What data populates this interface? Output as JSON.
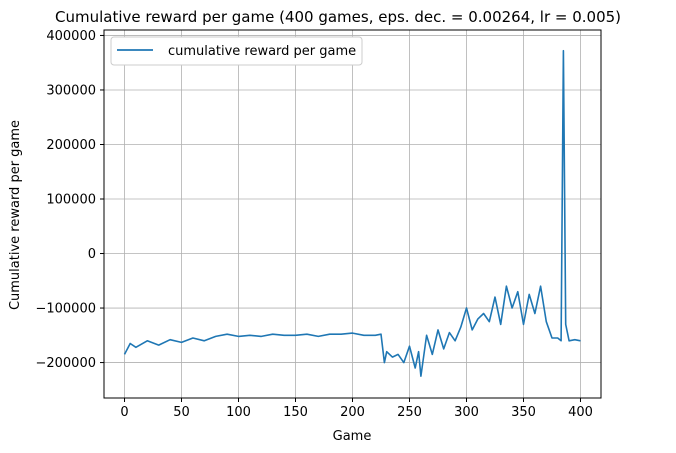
{
  "chart_data": {
    "type": "line",
    "title": "Cumulative reward per game (400 games, eps. dec. = 0.00264, lr = 0.005)",
    "xlabel": "Game",
    "ylabel": "Cumulative reward per game",
    "xlim": [
      -18,
      418
    ],
    "ylim": [
      -265000,
      410000
    ],
    "xticks": [
      0,
      50,
      100,
      150,
      200,
      250,
      300,
      350,
      400
    ],
    "xtick_labels": [
      "0",
      "50",
      "100",
      "150",
      "200",
      "250",
      "300",
      "350",
      "400"
    ],
    "yticks": [
      -200000,
      -100000,
      0,
      100000,
      200000,
      300000,
      400000
    ],
    "ytick_labels": [
      "−200000",
      "−100000",
      "0",
      "100000",
      "200000",
      "300000",
      "400000"
    ],
    "grid": true,
    "legend_position": "top-left",
    "color": "#1f77b4",
    "series": [
      {
        "name": "cumulative reward per game",
        "x": [
          0,
          5,
          10,
          20,
          30,
          40,
          50,
          60,
          70,
          80,
          90,
          100,
          110,
          120,
          130,
          140,
          150,
          160,
          170,
          180,
          190,
          200,
          210,
          220,
          225,
          228,
          230,
          235,
          240,
          245,
          250,
          255,
          258,
          260,
          265,
          270,
          275,
          280,
          285,
          290,
          295,
          300,
          305,
          310,
          315,
          320,
          325,
          330,
          335,
          340,
          345,
          350,
          355,
          360,
          365,
          370,
          375,
          380,
          383,
          385,
          387,
          390,
          395,
          400
        ],
        "y": [
          -185000,
          -165000,
          -172000,
          -160000,
          -168000,
          -158000,
          -163000,
          -155000,
          -160000,
          -152000,
          -148000,
          -152000,
          -150000,
          -152000,
          -148000,
          -150000,
          -150000,
          -148000,
          -152000,
          -148000,
          -148000,
          -146000,
          -150000,
          -150000,
          -148000,
          -200000,
          -180000,
          -190000,
          -185000,
          -200000,
          -170000,
          -210000,
          -180000,
          -225000,
          -150000,
          -185000,
          -140000,
          -175000,
          -145000,
          -160000,
          -135000,
          -100000,
          -140000,
          -120000,
          -110000,
          -125000,
          -80000,
          -130000,
          -60000,
          -100000,
          -70000,
          -130000,
          -75000,
          -110000,
          -60000,
          -125000,
          -155000,
          -155000,
          -160000,
          372000,
          -130000,
          -160000,
          -158000,
          -160000
        ]
      }
    ]
  }
}
